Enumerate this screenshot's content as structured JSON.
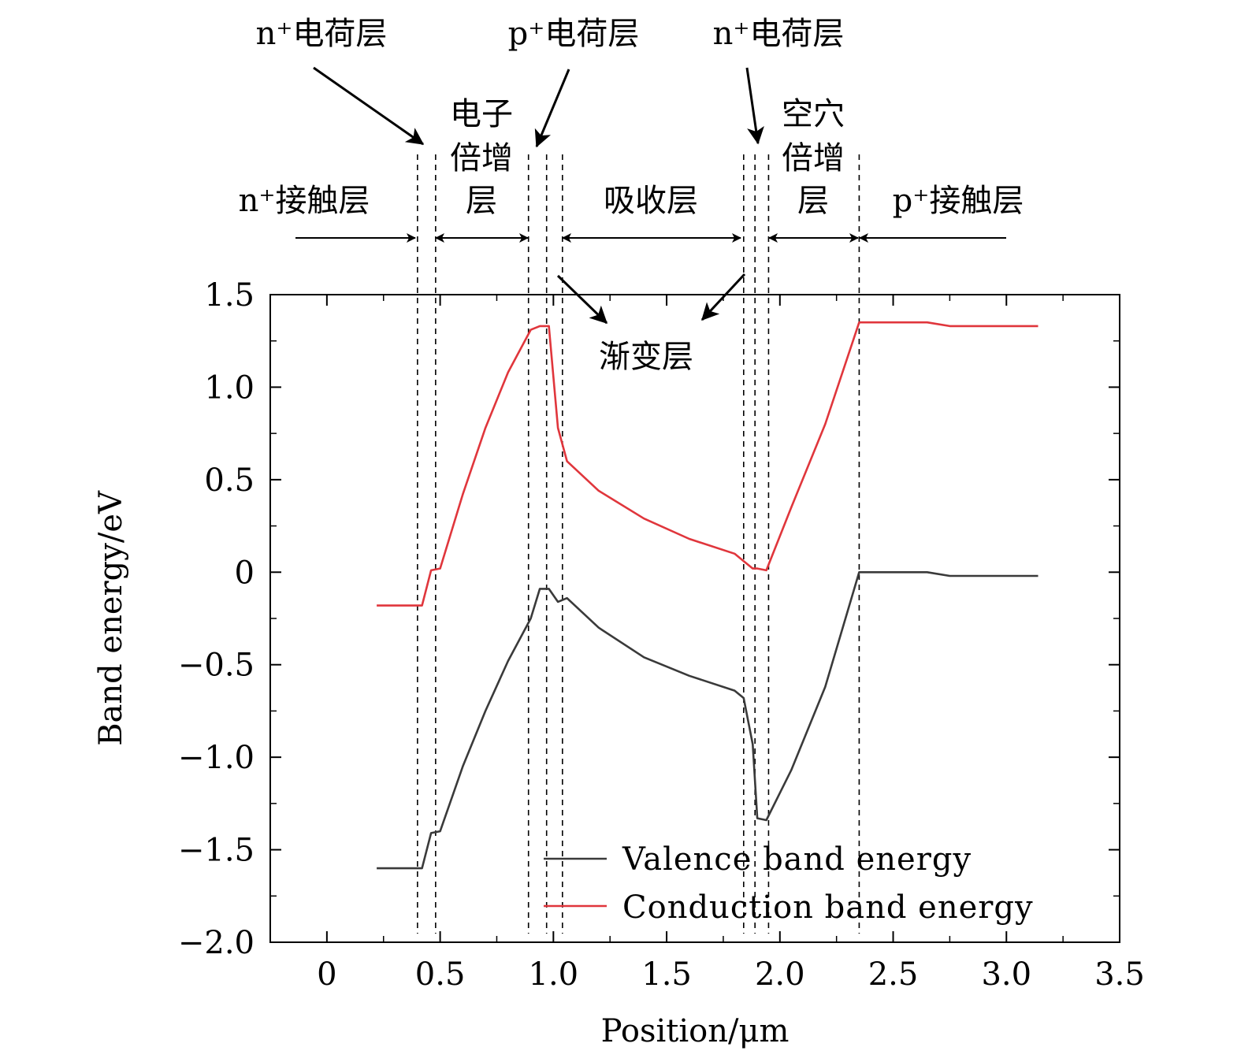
{
  "chart_data": {
    "type": "line",
    "title": "",
    "xlabel": "Position/μm",
    "ylabel": "Band energy/eV",
    "xlim": [
      -0.25,
      3.5
    ],
    "ylim": [
      -2.0,
      1.5
    ],
    "grid": false,
    "xticks": [
      {
        "v": 0,
        "label": "0"
      },
      {
        "v": 0.5,
        "label": "0.5"
      },
      {
        "v": 1.0,
        "label": "1.0"
      },
      {
        "v": 1.5,
        "label": "1.5"
      },
      {
        "v": 2.0,
        "label": "2.0"
      },
      {
        "v": 2.5,
        "label": "2.5"
      },
      {
        "v": 3.0,
        "label": "3.0"
      },
      {
        "v": 3.5,
        "label": "3.5"
      }
    ],
    "yticks": [
      {
        "v": 1.5,
        "label": "1.5"
      },
      {
        "v": 1.0,
        "label": "1.0"
      },
      {
        "v": 0.5,
        "label": "0.5"
      },
      {
        "v": 0,
        "label": "0"
      },
      {
        "v": -0.5,
        "label": "−0.5"
      },
      {
        "v": -1.0,
        "label": "−1.0"
      },
      {
        "v": -1.5,
        "label": "−1.5"
      },
      {
        "v": -2.0,
        "label": "−2.0"
      }
    ],
    "legend_position": "bottom-right",
    "series": [
      {
        "name": "Valence band energy",
        "color": "#3a3a3a",
        "points": [
          [
            0.22,
            -1.6
          ],
          [
            0.42,
            -1.6
          ],
          [
            0.46,
            -1.41
          ],
          [
            0.5,
            -1.4
          ],
          [
            0.6,
            -1.05
          ],
          [
            0.7,
            -0.75
          ],
          [
            0.8,
            -0.48
          ],
          [
            0.9,
            -0.25
          ],
          [
            0.94,
            -0.09
          ],
          [
            0.98,
            -0.09
          ],
          [
            1.02,
            -0.16
          ],
          [
            1.06,
            -0.14
          ],
          [
            1.2,
            -0.3
          ],
          [
            1.4,
            -0.46
          ],
          [
            1.6,
            -0.56
          ],
          [
            1.8,
            -0.64
          ],
          [
            1.84,
            -0.68
          ],
          [
            1.88,
            -0.93
          ],
          [
            1.9,
            -1.33
          ],
          [
            1.94,
            -1.34
          ],
          [
            2.05,
            -1.07
          ],
          [
            2.2,
            -0.62
          ],
          [
            2.35,
            0.0
          ],
          [
            2.65,
            0.0
          ],
          [
            2.75,
            -0.02
          ],
          [
            3.14,
            -0.02
          ]
        ]
      },
      {
        "name": "Conduction band energy",
        "color": "#e0363c",
        "points": [
          [
            0.22,
            -0.18
          ],
          [
            0.42,
            -0.18
          ],
          [
            0.46,
            0.01
          ],
          [
            0.5,
            0.02
          ],
          [
            0.6,
            0.42
          ],
          [
            0.7,
            0.78
          ],
          [
            0.8,
            1.08
          ],
          [
            0.9,
            1.31
          ],
          [
            0.94,
            1.33
          ],
          [
            0.98,
            1.33
          ],
          [
            1.02,
            0.78
          ],
          [
            1.06,
            0.6
          ],
          [
            1.2,
            0.44
          ],
          [
            1.4,
            0.29
          ],
          [
            1.6,
            0.18
          ],
          [
            1.8,
            0.1
          ],
          [
            1.84,
            0.06
          ],
          [
            1.88,
            0.02
          ],
          [
            1.9,
            0.02
          ],
          [
            1.94,
            0.01
          ],
          [
            2.05,
            0.35
          ],
          [
            2.2,
            0.8
          ],
          [
            2.35,
            1.35
          ],
          [
            2.65,
            1.35
          ],
          [
            2.75,
            1.33
          ],
          [
            3.14,
            1.33
          ]
        ]
      }
    ],
    "annotations": {
      "charge_n1": "n⁺电荷层",
      "charge_p": "p⁺电荷层",
      "charge_n2": "n⁺电荷层",
      "electron_mult": [
        "电子",
        "倍增",
        "层"
      ],
      "hole_mult": [
        "空穴",
        "倍增",
        "层"
      ],
      "contact_n": "n⁺接触层",
      "absorption": "吸收层",
      "contact_p": "p⁺接触层",
      "grading": "渐变层"
    },
    "layer_boundaries": [
      0.4,
      0.48,
      0.89,
      0.97,
      1.04,
      1.84,
      1.89,
      1.95,
      2.35
    ]
  }
}
